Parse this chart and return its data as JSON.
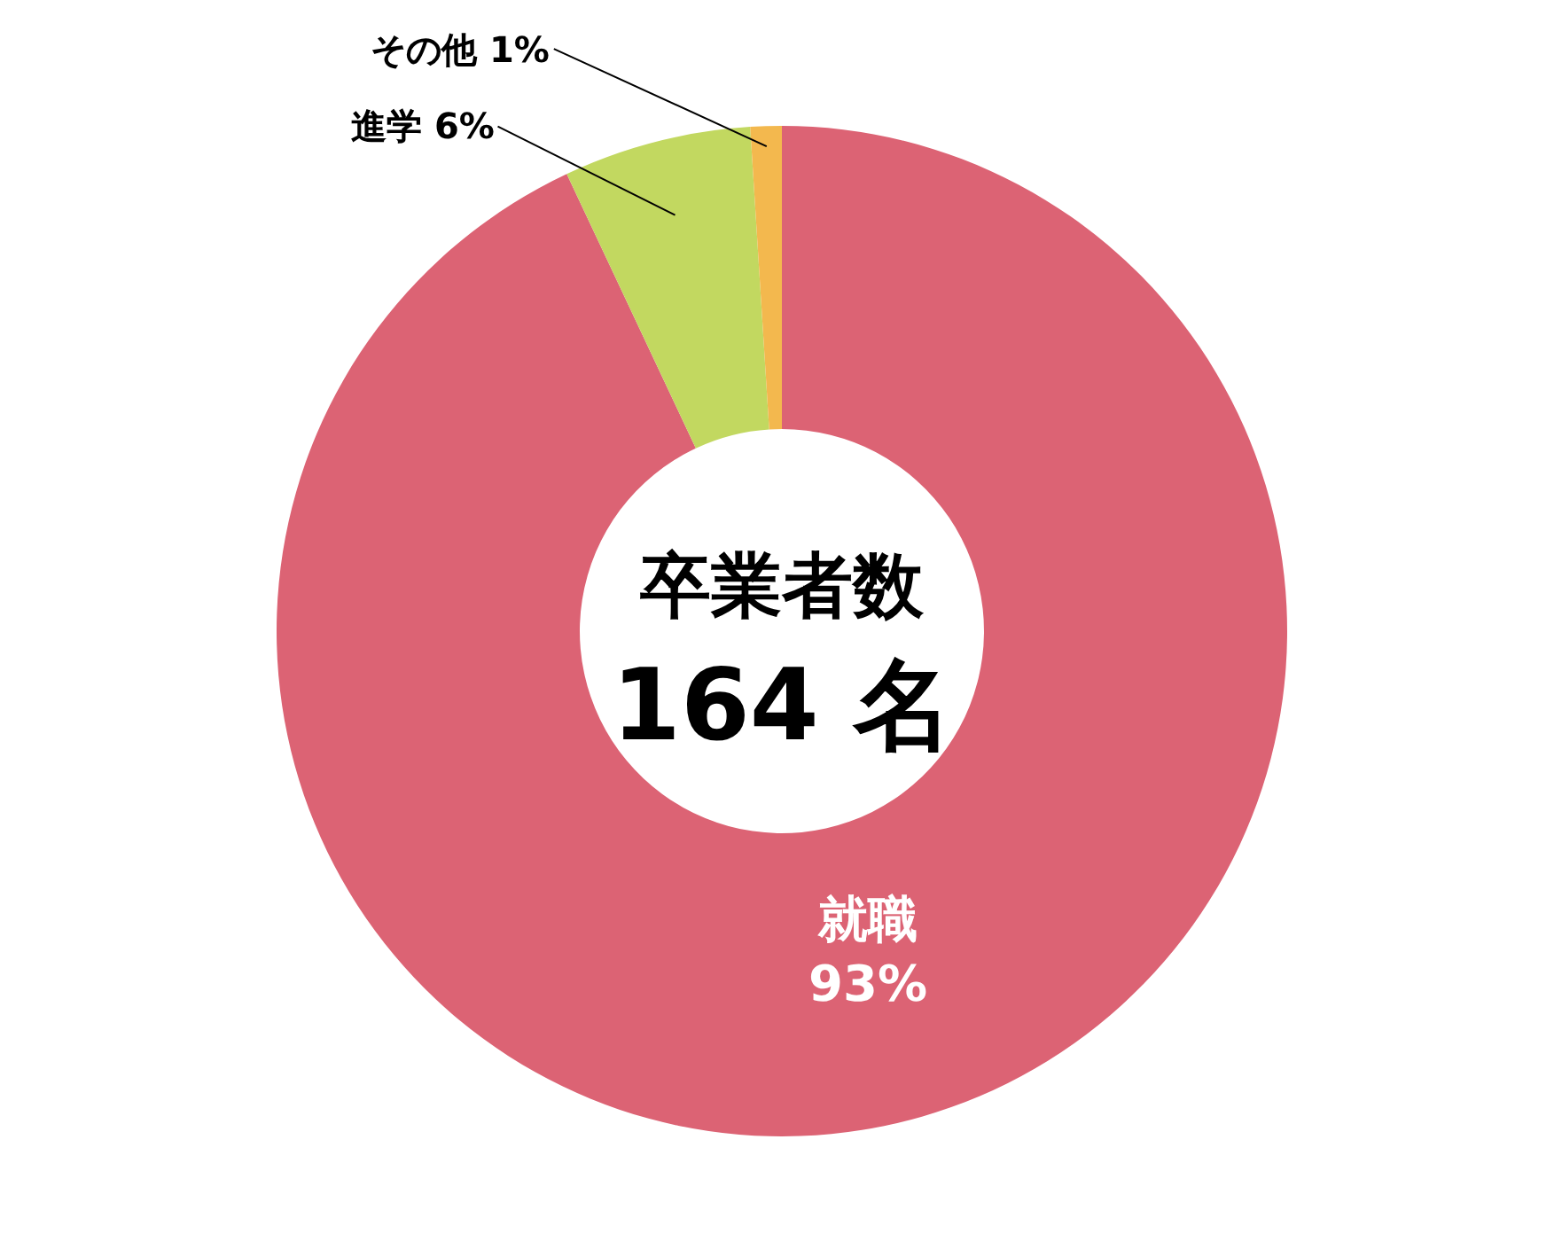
{
  "chart_data": {
    "type": "donut",
    "categories": [
      "就職",
      "進学",
      "その他"
    ],
    "values": [
      93,
      6,
      1
    ],
    "value_labels": [
      "93%",
      "6%",
      "1%"
    ],
    "colors": [
      "#dc6374",
      "#c2d860",
      "#f3b84e"
    ],
    "annotations": [
      "卒業者数",
      "164 名"
    ],
    "legend": false
  }
}
